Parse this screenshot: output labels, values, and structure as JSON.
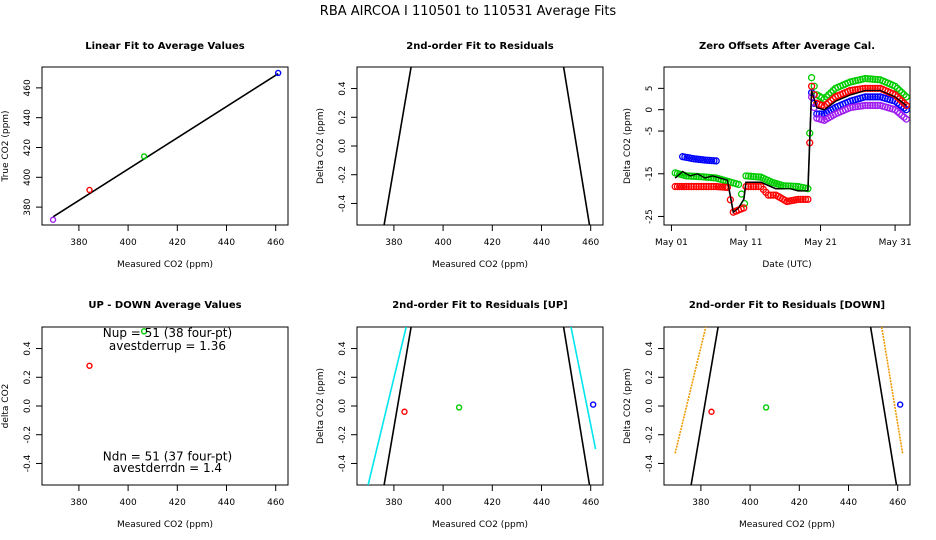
{
  "suptitle": "RBA   AIRCOA I   110501 to 110531    Average Fits",
  "colors": {
    "red": "#ff0000",
    "green": "#00cc00",
    "blue": "#0000ff",
    "purple": "#a020f0",
    "cyan": "#00e5ee",
    "orange": "#ee9a00",
    "black": "#000000"
  },
  "chart_data": [
    {
      "id": "p1",
      "type": "scatter",
      "title": "Linear Fit to Average Values",
      "xlabel": "Measured CO2 (ppm)",
      "ylabel": "True CO2 (ppm)",
      "xlim": [
        365,
        465
      ],
      "ylim": [
        368,
        474
      ],
      "xticks": [
        380,
        400,
        420,
        440,
        460
      ],
      "yticks": [
        380,
        400,
        420,
        440,
        460
      ],
      "points": [
        {
          "x": 369.5,
          "y": 371.5,
          "color": "purple"
        },
        {
          "x": 384.3,
          "y": 391.5,
          "color": "red"
        },
        {
          "x": 406.5,
          "y": 414.0,
          "color": "green"
        },
        {
          "x": 461.0,
          "y": 470.0,
          "color": "blue"
        }
      ],
      "lines": [
        {
          "x": [
            369.5,
            461.0
          ],
          "y": [
            373.5,
            469.5
          ],
          "color": "black"
        }
      ]
    },
    {
      "id": "p2",
      "type": "line",
      "title": "2nd-order Fit to Residuals",
      "xlabel": "Measured CO2 (ppm)",
      "ylabel": "Delta CO2 (ppm)",
      "xlim": [
        365,
        465
      ],
      "ylim": [
        -0.55,
        0.55
      ],
      "xticks": [
        380,
        400,
        420,
        440,
        460
      ],
      "yticks": [
        -0.4,
        -0.2,
        0.0,
        0.2,
        0.4
      ],
      "lines": [
        {
          "x": [
            376,
            387
          ],
          "y": [
            -0.55,
            0.55
          ],
          "color": "black"
        },
        {
          "x": [
            449,
            459.5
          ],
          "y": [
            0.55,
            -0.55
          ],
          "color": "black"
        }
      ]
    },
    {
      "id": "p3",
      "type": "scatter",
      "title": "Zero Offsets After Average Cal.",
      "xlabel": "Date (UTC)",
      "ylabel": "Delta CO2 (ppm)",
      "xlim": [
        -1,
        32
      ],
      "ylim": [
        -27,
        10
      ],
      "xticks": [
        0,
        10,
        20,
        30
      ],
      "xticklabels": [
        "May 01",
        "May 11",
        "May 21",
        "May 31"
      ],
      "yticks": [
        -25,
        -15,
        -5,
        0,
        5
      ],
      "ytick_display": [
        "-25",
        "-15",
        "-5",
        "0",
        "5"
      ],
      "series": [
        {
          "name": "blue",
          "color": "blue",
          "points": [
            [
              1.5,
              -11.0
            ],
            [
              3,
              -11.5
            ],
            [
              4.5,
              -11.8
            ],
            [
              6,
              -12.0
            ],
            [
              18.8,
              4.0
            ],
            [
              19.5,
              -1.0
            ],
            [
              20.5,
              -1.0
            ],
            [
              22,
              0.5
            ],
            [
              24,
              2.0
            ],
            [
              26,
              3.0
            ],
            [
              28,
              3.0
            ],
            [
              30,
              2.0
            ],
            [
              31.5,
              0.0
            ]
          ]
        },
        {
          "name": "green",
          "color": "green",
          "points": [
            [
              0.5,
              -14.8
            ],
            [
              2,
              -15.5
            ],
            [
              4,
              -15.7
            ],
            [
              6,
              -16.0
            ],
            [
              8,
              -17.0
            ],
            [
              9,
              -17.5
            ],
            [
              9.8,
              -22.0
            ],
            [
              10,
              -15.5
            ],
            [
              12,
              -15.8
            ],
            [
              13.5,
              -17.0
            ],
            [
              15,
              -17.8
            ],
            [
              17,
              -18.0
            ],
            [
              18.3,
              -18.5
            ],
            [
              18.8,
              7.5
            ],
            [
              19.5,
              3.5
            ],
            [
              20.5,
              2.5
            ],
            [
              22,
              5.0
            ],
            [
              24,
              6.5
            ],
            [
              26,
              7.3
            ],
            [
              28,
              7.0
            ],
            [
              30,
              5.5
            ],
            [
              31.5,
              3.0
            ]
          ]
        },
        {
          "name": "red",
          "color": "red",
          "points": [
            [
              0.5,
              -18.0
            ],
            [
              2,
              -18.0
            ],
            [
              4,
              -18.0
            ],
            [
              6,
              -18.0
            ],
            [
              7.5,
              -18.2
            ],
            [
              8.3,
              -24.0
            ],
            [
              9,
              -23.5
            ],
            [
              9.7,
              -23.0
            ],
            [
              10,
              -18.0
            ],
            [
              12,
              -18.0
            ],
            [
              13,
              -20.0
            ],
            [
              14,
              -20.0
            ],
            [
              15.5,
              -21.5
            ],
            [
              17,
              -21.0
            ],
            [
              18.3,
              -21.0
            ],
            [
              18.8,
              5.5
            ],
            [
              19.5,
              1.5
            ],
            [
              20.5,
              0.8
            ],
            [
              22,
              3.0
            ],
            [
              24,
              4.5
            ],
            [
              26,
              5.0
            ],
            [
              28,
              5.0
            ],
            [
              30,
              3.5
            ],
            [
              31.5,
              1.0
            ]
          ]
        },
        {
          "name": "purple",
          "color": "purple",
          "points": [
            [
              18.8,
              3.0
            ],
            [
              19.5,
              -2.0
            ],
            [
              20.5,
              -2.5
            ],
            [
              22,
              -1.0
            ],
            [
              24,
              0.5
            ],
            [
              26,
              1.0
            ],
            [
              28,
              1.0
            ],
            [
              30,
              0.0
            ],
            [
              31.5,
              -2.2
            ]
          ]
        }
      ],
      "lines": [
        {
          "x": [
            0.5,
            1.5,
            2.5,
            3.5,
            4.5,
            5.5,
            6.5,
            7.5,
            8.3,
            9,
            9.7,
            10,
            12,
            14,
            16,
            17,
            18.3,
            18.8,
            19.5,
            20.5,
            22,
            24,
            26,
            28,
            30,
            31.5
          ],
          "y": [
            -16,
            -14.5,
            -15.5,
            -15,
            -16,
            -15.5,
            -16,
            -16.5,
            -24,
            -23,
            -21,
            -17,
            -17,
            -18.5,
            -18.5,
            -19,
            -19,
            4.5,
            0.5,
            0,
            2,
            3.5,
            4.5,
            4.5,
            3,
            1
          ],
          "color": "black"
        }
      ]
    },
    {
      "id": "p4",
      "type": "scatter",
      "title": "UP - DOWN Average Values",
      "xlabel": "Measured CO2 (ppm)",
      "ylabel": "delta CO2",
      "xlim": [
        365,
        465
      ],
      "ylim": [
        -0.55,
        0.55
      ],
      "xticks": [
        380,
        400,
        420,
        440,
        460
      ],
      "yticks": [
        -0.4,
        -0.2,
        0.0,
        0.2,
        0.4
      ],
      "points": [
        {
          "x": 384.3,
          "y": 0.28,
          "color": "red"
        },
        {
          "x": 406.5,
          "y": 0.52,
          "color": "green"
        }
      ],
      "annotations": [
        {
          "text": "Nup = 51 (38 four-pt)",
          "x": 416,
          "y": 0.48
        },
        {
          "text": "avestderrup =  1.36",
          "x": 416,
          "y": 0.39
        },
        {
          "text": "Ndn = 51 (37 four-pt)",
          "x": 416,
          "y": -0.38
        },
        {
          "text": "avestderrdn =  1.4",
          "x": 416,
          "y": -0.46
        }
      ]
    },
    {
      "id": "p5",
      "type": "scatter",
      "title": "2nd-order Fit to Residuals [UP]",
      "xlabel": "Measured CO2 (ppm)",
      "ylabel": "Delta CO2 (ppm)",
      "xlim": [
        365,
        465
      ],
      "ylim": [
        -0.55,
        0.55
      ],
      "xticks": [
        380,
        400,
        420,
        440,
        460
      ],
      "yticks": [
        -0.4,
        -0.2,
        0.0,
        0.2,
        0.4
      ],
      "points": [
        {
          "x": 384.3,
          "y": -0.04,
          "color": "red"
        },
        {
          "x": 406.5,
          "y": -0.01,
          "color": "green"
        },
        {
          "x": 461.0,
          "y": 0.01,
          "color": "blue"
        }
      ],
      "lines": [
        {
          "x": [
            369.5,
            385
          ],
          "y": [
            -0.55,
            0.55
          ],
          "color": "cyan"
        },
        {
          "x": [
            376,
            387
          ],
          "y": [
            -0.55,
            0.55
          ],
          "color": "black"
        },
        {
          "x": [
            449,
            459.5
          ],
          "y": [
            0.55,
            -0.55
          ],
          "color": "black"
        },
        {
          "x": [
            452,
            462
          ],
          "y": [
            0.55,
            -0.3
          ],
          "color": "cyan"
        }
      ]
    },
    {
      "id": "p6",
      "type": "scatter",
      "title": "2nd-order Fit to Residuals [DOWN]",
      "xlabel": "Measured CO2 (ppm)",
      "ylabel": "Delta CO2 (ppm)",
      "xlim": [
        365,
        465
      ],
      "ylim": [
        -0.55,
        0.55
      ],
      "xticks": [
        380,
        400,
        420,
        440,
        460
      ],
      "yticks": [
        -0.4,
        -0.2,
        0.0,
        0.2,
        0.4
      ],
      "points": [
        {
          "x": 384.3,
          "y": -0.04,
          "color": "red"
        },
        {
          "x": 406.5,
          "y": -0.01,
          "color": "green"
        },
        {
          "x": 461.0,
          "y": 0.01,
          "color": "blue"
        }
      ],
      "lines": [
        {
          "x": [
            369.5,
            382
          ],
          "y": [
            -0.33,
            0.55
          ],
          "color": "orange"
        },
        {
          "x": [
            376,
            387
          ],
          "y": [
            -0.55,
            0.55
          ],
          "color": "black"
        },
        {
          "x": [
            449,
            459.5
          ],
          "y": [
            0.55,
            -0.55
          ],
          "color": "black"
        },
        {
          "x": [
            453.5,
            462
          ],
          "y": [
            0.55,
            -0.33
          ],
          "color": "orange"
        }
      ]
    }
  ]
}
